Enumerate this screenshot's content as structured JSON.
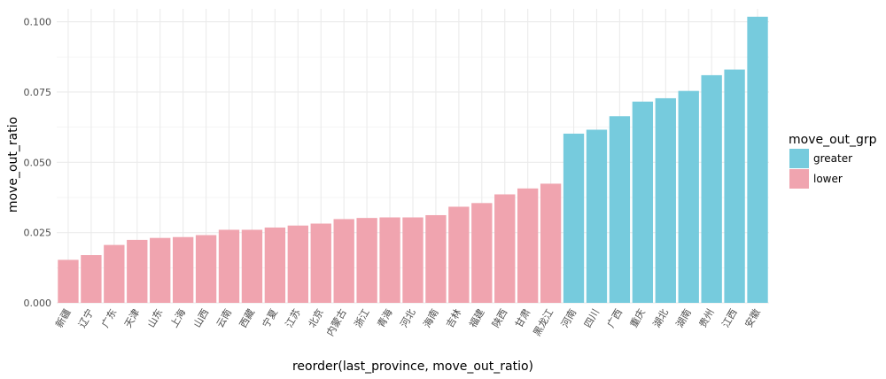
{
  "chart_data": {
    "type": "bar",
    "xlabel": "reorder(last_province, move_out_ratio)",
    "ylabel": "move_out_ratio",
    "ylim": [
      0,
      0.1046
    ],
    "y_ticks": [
      "0.000",
      "0.025",
      "0.050",
      "0.075",
      "0.100"
    ],
    "y_tick_values": [
      0,
      0.025,
      0.05,
      0.075,
      0.1
    ],
    "grid": true,
    "legend_placement": "right",
    "legend": {
      "title": "move_out_grp",
      "entries": [
        {
          "label": "greater",
          "color": "#76CBDD"
        },
        {
          "label": "lower",
          "color": "#F0A4AF"
        }
      ]
    },
    "categories": [
      "新疆",
      "辽宁",
      "广东",
      "天津",
      "山东",
      "上海",
      "山西",
      "云南",
      "西藏",
      "宁夏",
      "江苏",
      "北京",
      "内蒙古",
      "浙江",
      "青海",
      "河北",
      "海南",
      "吉林",
      "福建",
      "陕西",
      "甘肃",
      "黑龙江",
      "河南",
      "四川",
      "广西",
      "重庆",
      "湖北",
      "湖南",
      "贵州",
      "江西",
      "安徽"
    ],
    "values": [
      0.0153,
      0.017,
      0.0206,
      0.0224,
      0.0231,
      0.0234,
      0.0241,
      0.026,
      0.026,
      0.0268,
      0.0275,
      0.0282,
      0.0298,
      0.0302,
      0.0304,
      0.0304,
      0.0312,
      0.0342,
      0.0355,
      0.0386,
      0.0407,
      0.0424,
      0.0602,
      0.0616,
      0.0664,
      0.0716,
      0.0728,
      0.0754,
      0.081,
      0.083,
      0.1018
    ],
    "groups": [
      "lower",
      "lower",
      "lower",
      "lower",
      "lower",
      "lower",
      "lower",
      "lower",
      "lower",
      "lower",
      "lower",
      "lower",
      "lower",
      "lower",
      "lower",
      "lower",
      "lower",
      "lower",
      "lower",
      "lower",
      "lower",
      "lower",
      "greater",
      "greater",
      "greater",
      "greater",
      "greater",
      "greater",
      "greater",
      "greater",
      "greater"
    ]
  }
}
